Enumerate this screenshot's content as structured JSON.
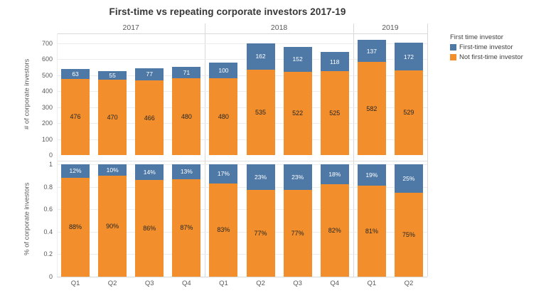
{
  "title": "First-time vs repeating corporate investors 2017-19",
  "legend": {
    "title": "First time investor",
    "items": [
      {
        "key": "first_time",
        "label": "First-time investor",
        "color": "#4e79a7"
      },
      {
        "key": "not_first_time",
        "label": "Not first-time investor",
        "color": "#f28e2b"
      }
    ]
  },
  "colors": {
    "first_time": "#4e79a7",
    "not_first_time": "#f28e2b",
    "first_time_label_text": "#ffffff",
    "not_first_time_label_text": "#262626",
    "grid": "#ececec",
    "axis_line": "#d9d9d9",
    "tick_text": "#595959",
    "title_text": "#363636"
  },
  "chart_data": [
    {
      "type": "bar",
      "stacked": true,
      "panel": "counts",
      "ylabel": "# of corporate investors",
      "ylim": [
        0,
        760
      ],
      "yticks": [
        "0",
        "100",
        "200",
        "300",
        "400",
        "500",
        "600",
        "700"
      ],
      "ytick_values": [
        0,
        100,
        200,
        300,
        400,
        500,
        600,
        700
      ],
      "grid": true,
      "legend_position": "top-right",
      "groups": [
        {
          "year": "2017",
          "categories": [
            "Q1",
            "Q2",
            "Q3",
            "Q4"
          ],
          "not_first_time": [
            476,
            470,
            466,
            480
          ],
          "first_time": [
            63,
            55,
            77,
            71
          ]
        },
        {
          "year": "2018",
          "categories": [
            "Q1",
            "Q2",
            "Q3",
            "Q4"
          ],
          "not_first_time": [
            480,
            535,
            522,
            525
          ],
          "first_time": [
            100,
            162,
            152,
            118
          ]
        },
        {
          "year": "2019",
          "categories": [
            "Q1",
            "Q2"
          ],
          "not_first_time": [
            582,
            529
          ],
          "first_time": [
            137,
            172
          ]
        }
      ]
    },
    {
      "type": "bar",
      "stacked": true,
      "panel": "percent",
      "ylabel": "% of corporate investors",
      "ylim": [
        0,
        100
      ],
      "yticks": [
        "0",
        "0.2",
        "0.4",
        "0.6",
        "0.8",
        "1"
      ],
      "ytick_values": [
        0,
        20,
        40,
        60,
        80,
        100
      ],
      "grid": true,
      "label_suffix": "%",
      "groups": [
        {
          "year": "2017",
          "categories": [
            "Q1",
            "Q2",
            "Q3",
            "Q4"
          ],
          "not_first_time": [
            88,
            90,
            86,
            87
          ],
          "first_time": [
            12,
            10,
            14,
            13
          ]
        },
        {
          "year": "2018",
          "categories": [
            "Q1",
            "Q2",
            "Q3",
            "Q4"
          ],
          "not_first_time": [
            83,
            77,
            77,
            82
          ],
          "first_time": [
            17,
            23,
            23,
            18
          ]
        },
        {
          "year": "2019",
          "categories": [
            "Q1",
            "Q2"
          ],
          "not_first_time": [
            81,
            75
          ],
          "first_time": [
            19,
            25
          ]
        }
      ]
    }
  ]
}
